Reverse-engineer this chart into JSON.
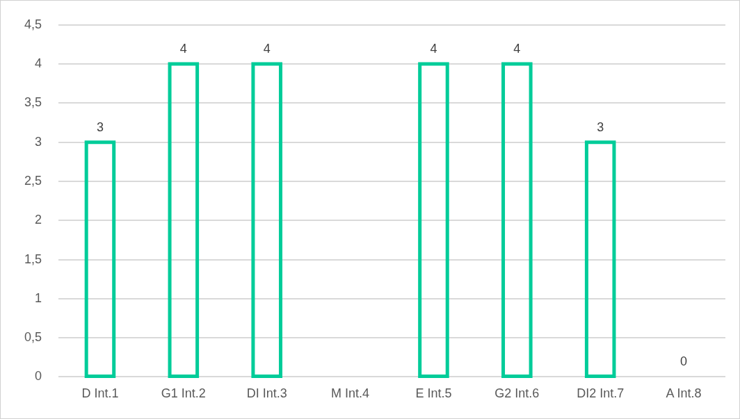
{
  "chart_data": {
    "type": "bar",
    "categories": [
      "D Int.1",
      "G1 Int.2",
      "DI Int.3",
      "M Int.4",
      "E Int.5",
      "G2 Int.6",
      "DI2 Int.7",
      "A Int.8"
    ],
    "values": [
      3,
      4,
      4,
      null,
      4,
      4,
      3,
      0
    ],
    "color": "#00cc99",
    "ylim": [
      0,
      4.5
    ],
    "yticks": [
      0,
      {
        "value": 0.5,
        "label": "0,5"
      },
      1,
      {
        "value": 1.5,
        "label": "1,5"
      },
      2,
      {
        "value": 2.5,
        "label": "2,5"
      },
      3,
      {
        "value": 3.5,
        "label": "3,5"
      },
      4,
      {
        "value": 4.5,
        "label": "4,5"
      }
    ],
    "grid": "y",
    "data_labels": true
  }
}
